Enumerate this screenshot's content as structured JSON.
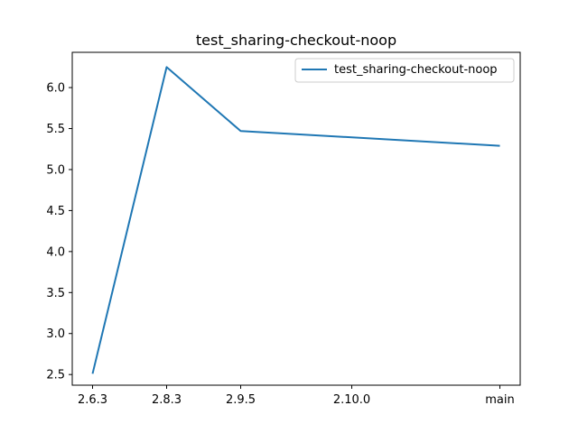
{
  "chart_data": {
    "type": "line",
    "title": "test_sharing-checkout-noop",
    "xlabel": "",
    "ylabel": "",
    "categories": [
      "2.6.3",
      "2.8.3",
      "2.9.5",
      "2.10.0",
      "main"
    ],
    "x_positions": [
      0,
      1,
      2,
      3.5,
      5.5
    ],
    "series": [
      {
        "name": "test_sharing-checkout-noop",
        "x": [
          "2.6.3",
          "2.8.3",
          "2.9.5",
          "main"
        ],
        "values": [
          2.51,
          6.25,
          5.47,
          5.29
        ],
        "color": "#1f77b4"
      }
    ],
    "ylim": [
      2.37,
      6.43
    ],
    "yticks": [
      "2.5",
      "3.0",
      "3.5",
      "4.0",
      "4.5",
      "5.0",
      "5.5",
      "6.0"
    ],
    "grid": false,
    "legend": "top-right"
  }
}
